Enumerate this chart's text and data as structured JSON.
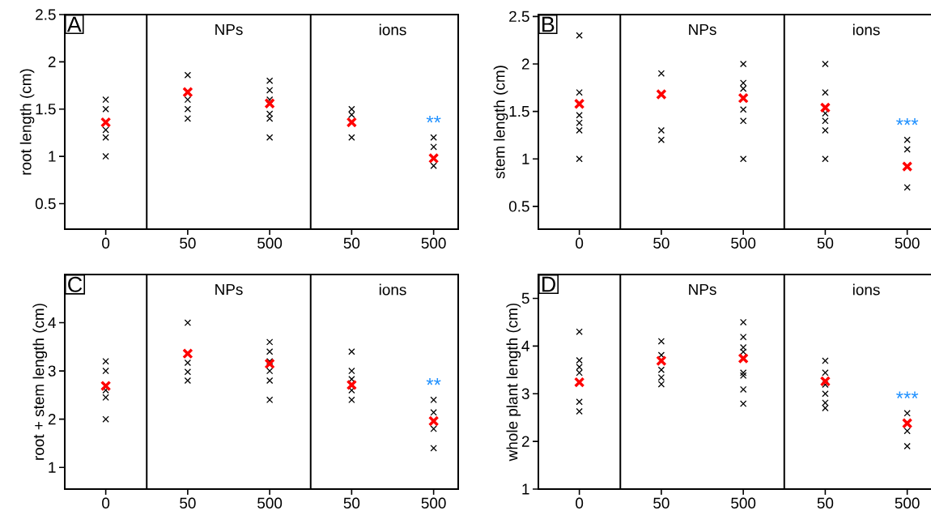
{
  "chart_data": [
    {
      "type": "scatter",
      "title": "A",
      "ylabel": "root length (cm)",
      "categories": [
        "0",
        "50",
        "500",
        "50",
        "500"
      ],
      "ylim": [
        0.23,
        2.5
      ],
      "yticks": [
        0.5,
        1,
        1.5,
        2,
        2.5
      ],
      "series": [
        {
          "color": "#000000",
          "marker": "cross",
          "values": [
            1.6,
            1.86,
            1.8,
            1.5,
            1.2
          ]
        },
        {
          "color": "#000000",
          "marker": "cross",
          "values": [
            1.5,
            null,
            1.7,
            1.44,
            1.1
          ]
        },
        {
          "color": "#000000",
          "marker": "cross",
          "values": [
            1.28,
            1.6,
            1.6,
            null,
            null
          ]
        },
        {
          "color": "#000000",
          "marker": "cross",
          "values": [
            1.2,
            1.5,
            1.45,
            1.2,
            0.9
          ]
        },
        {
          "color": "#000000",
          "marker": "cross",
          "values": [
            1.0,
            1.4,
            1.4,
            null,
            null
          ]
        },
        {
          "color": "#000000",
          "marker": "cross",
          "values": [
            null,
            null,
            1.2,
            null,
            null
          ]
        },
        {
          "color": "#ff0000",
          "marker": "cross",
          "values": [
            1.36,
            1.68,
            1.56,
            1.36,
            0.98
          ]
        }
      ],
      "annotations": [
        "NPs",
        "ions",
        "**"
      ]
    },
    {
      "type": "scatter",
      "title": "B",
      "ylabel": "stem length (cm)",
      "categories": [
        "0",
        "50",
        "500",
        "50",
        "500"
      ],
      "ylim": [
        0.26,
        2.52
      ],
      "yticks": [
        0.5,
        1,
        1.5,
        2,
        2.5
      ],
      "series": [
        {
          "color": "#000000",
          "marker": "cross",
          "values": [
            2.3,
            1.9,
            2.0,
            2.0,
            1.2
          ]
        },
        {
          "color": "#000000",
          "marker": "cross",
          "values": [
            1.7,
            1.3,
            1.8,
            1.7,
            1.1
          ]
        },
        {
          "color": "#000000",
          "marker": "cross",
          "values": [
            1.46,
            1.2,
            1.74,
            1.48,
            0.7
          ]
        },
        {
          "color": "#000000",
          "marker": "cross",
          "values": [
            1.38,
            null,
            null,
            1.4,
            null
          ]
        },
        {
          "color": "#000000",
          "marker": "cross",
          "values": [
            1.3,
            null,
            1.52,
            1.3,
            null
          ]
        },
        {
          "color": "#000000",
          "marker": "cross",
          "values": [
            1.0,
            null,
            1.4,
            1.0,
            null
          ]
        },
        {
          "color": "#000000",
          "marker": "cross",
          "values": [
            null,
            null,
            1.0,
            null,
            null
          ]
        },
        {
          "color": "#ff0000",
          "marker": "cross",
          "values": [
            1.58,
            1.68,
            1.64,
            1.54,
            0.92
          ]
        }
      ],
      "annotations": [
        "NPs",
        "ions",
        "***"
      ]
    },
    {
      "type": "scatter",
      "title": "C",
      "ylabel": "root +  stem length (cm)",
      "categories": [
        "0",
        "50",
        "500",
        "50",
        "500"
      ],
      "ylim": [
        0.55,
        5.0
      ],
      "yticks": [
        1,
        2,
        3,
        4
      ],
      "series": [
        {
          "color": "#000000",
          "marker": "cross",
          "values": [
            3.2,
            4.0,
            3.6,
            3.4,
            2.4
          ]
        },
        {
          "color": "#000000",
          "marker": "cross",
          "values": [
            3.0,
            null,
            3.4,
            3.0,
            2.14
          ]
        },
        {
          "color": "#000000",
          "marker": "cross",
          "values": [
            2.6,
            3.17,
            3.2,
            2.83,
            1.8
          ]
        },
        {
          "color": "#000000",
          "marker": "cross",
          "values": [
            2.45,
            2.98,
            3.0,
            2.6,
            1.4
          ]
        },
        {
          "color": "#000000",
          "marker": "cross",
          "values": [
            2.0,
            2.8,
            2.8,
            2.4,
            null
          ]
        },
        {
          "color": "#000000",
          "marker": "cross",
          "values": [
            null,
            null,
            2.4,
            null,
            null
          ]
        },
        {
          "color": "#ff0000",
          "marker": "cross",
          "values": [
            2.69,
            3.36,
            3.15,
            2.71,
            1.96
          ]
        }
      ],
      "annotations": [
        "NPs",
        "ions",
        "**"
      ]
    },
    {
      "type": "scatter",
      "title": "D",
      "ylabel": "whole plant length (cm)",
      "categories": [
        "0",
        "50",
        "500",
        "50",
        "500"
      ],
      "ylim": [
        1,
        5.5
      ],
      "yticks": [
        1,
        2,
        3,
        4,
        5
      ],
      "series": [
        {
          "color": "#000000",
          "marker": "cross",
          "values": [
            4.3,
            4.1,
            4.5,
            3.69,
            2.59
          ]
        },
        {
          "color": "#000000",
          "marker": "cross",
          "values": [
            3.7,
            3.81,
            4.19,
            3.44,
            null
          ]
        },
        {
          "color": "#000000",
          "marker": "cross",
          "values": [
            3.56,
            3.5,
            3.97,
            3.19,
            2.22
          ]
        },
        {
          "color": "#000000",
          "marker": "cross",
          "values": [
            3.44,
            3.34,
            3.88,
            3.0,
            1.9
          ]
        },
        {
          "color": "#000000",
          "marker": "cross",
          "values": [
            2.83,
            3.2,
            3.44,
            2.81,
            null
          ]
        },
        {
          "color": "#000000",
          "marker": "cross",
          "values": [
            2.63,
            null,
            3.38,
            2.7,
            null
          ]
        },
        {
          "color": "#000000",
          "marker": "cross",
          "values": [
            null,
            null,
            3.09,
            null,
            null
          ]
        },
        {
          "color": "#000000",
          "marker": "cross",
          "values": [
            null,
            null,
            2.79,
            null,
            null
          ]
        },
        {
          "color": "#ff0000",
          "marker": "cross",
          "values": [
            3.24,
            3.69,
            3.74,
            3.26,
            2.38
          ]
        }
      ],
      "annotations": [
        "NPs",
        "ions",
        "***"
      ]
    }
  ]
}
